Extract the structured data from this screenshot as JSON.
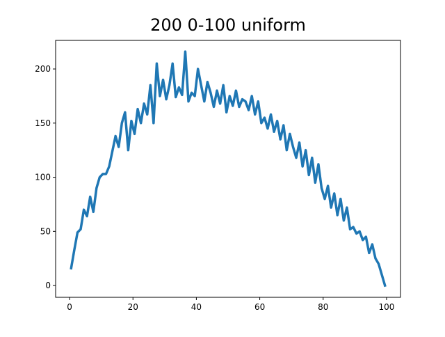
{
  "chart_data": {
    "type": "line",
    "title": "200 0-100 uniform",
    "x": [
      0.5,
      1.5,
      2.5,
      3.5,
      4.5,
      5.5,
      6.5,
      7.5,
      8.5,
      9.5,
      10.5,
      11.5,
      12.5,
      13.5,
      14.5,
      15.5,
      16.5,
      17.5,
      18.5,
      19.5,
      20.5,
      21.5,
      22.5,
      23.5,
      24.5,
      25.5,
      26.5,
      27.5,
      28.5,
      29.5,
      30.5,
      31.5,
      32.5,
      33.5,
      34.5,
      35.5,
      36.5,
      37.5,
      38.5,
      39.5,
      40.5,
      41.5,
      42.5,
      43.5,
      44.5,
      45.5,
      46.5,
      47.5,
      48.5,
      49.5,
      50.5,
      51.5,
      52.5,
      53.5,
      54.5,
      55.5,
      56.5,
      57.5,
      58.5,
      59.5,
      60.5,
      61.5,
      62.5,
      63.5,
      64.5,
      65.5,
      66.5,
      67.5,
      68.5,
      69.5,
      70.5,
      71.5,
      72.5,
      73.5,
      74.5,
      75.5,
      76.5,
      77.5,
      78.5,
      79.5,
      80.5,
      81.5,
      82.5,
      83.5,
      84.5,
      85.5,
      86.5,
      87.5,
      88.5,
      89.5,
      90.5,
      91.5,
      92.5,
      93.5,
      94.5,
      95.5,
      96.5,
      97.5,
      98.5,
      99.5
    ],
    "series": [
      {
        "color": "#1f77b4",
        "values": [
          16,
          33,
          49,
          52,
          70,
          64,
          82,
          68,
          90,
          100,
          103,
          103,
          110,
          124,
          138,
          128,
          150,
          160,
          125,
          152,
          140,
          163,
          150,
          168,
          158,
          185,
          150,
          205,
          175,
          190,
          172,
          185,
          205,
          174,
          183,
          176,
          216,
          170,
          178,
          175,
          200,
          185,
          170,
          188,
          178,
          165,
          180,
          168,
          185,
          160,
          175,
          166,
          180,
          165,
          172,
          170,
          162,
          175,
          158,
          170,
          150,
          155,
          145,
          158,
          142,
          152,
          135,
          148,
          125,
          140,
          128,
          118,
          132,
          110,
          125,
          102,
          118,
          95,
          112,
          90,
          80,
          92,
          72,
          85,
          65,
          80,
          60,
          72,
          52,
          54,
          48,
          50,
          42,
          45,
          30,
          38,
          25,
          20,
          10,
          0
        ]
      }
    ],
    "xlim": [
      -4.4,
      104.4
    ],
    "xticks": [
      0,
      20,
      40,
      60,
      80,
      100
    ],
    "ylim": [
      -10.9,
      226.4
    ],
    "yticks": [
      0,
      50,
      100,
      150,
      200
    ]
  }
}
